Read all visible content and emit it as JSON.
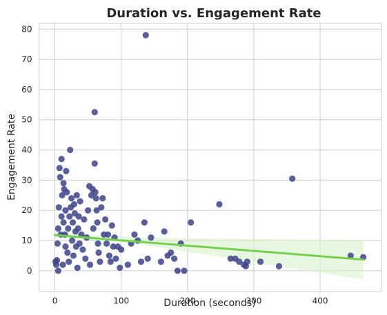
{
  "chart_data": {
    "type": "scatter",
    "title": "Duration vs. Engagement Rate",
    "xlabel": "Duration (seconds)",
    "ylabel": "Engagement Rate",
    "xlim": [
      -24,
      492
    ],
    "ylim": [
      -7,
      82
    ],
    "x_ticks": [
      0,
      100,
      200,
      300,
      400
    ],
    "y_ticks": [
      0,
      10,
      20,
      30,
      40,
      50,
      60,
      70,
      80
    ],
    "grid": true,
    "colors": {
      "points": "#3c4388",
      "regression_line": "#77cf4f",
      "confidence_band": "#d9f2cc"
    },
    "series": [
      {
        "points": [
          [
            1,
            3
          ],
          [
            2,
            2
          ],
          [
            3,
            3.5
          ],
          [
            4,
            9
          ],
          [
            5,
            0
          ],
          [
            5,
            14
          ],
          [
            6,
            21
          ],
          [
            7,
            34
          ],
          [
            8,
            31
          ],
          [
            9,
            12
          ],
          [
            10,
            37
          ],
          [
            10,
            18
          ],
          [
            11,
            25
          ],
          [
            12,
            2
          ],
          [
            13,
            29
          ],
          [
            13,
            16
          ],
          [
            14,
            27
          ],
          [
            15,
            12
          ],
          [
            16,
            8
          ],
          [
            16,
            20
          ],
          [
            17,
            33
          ],
          [
            18,
            26
          ],
          [
            19,
            6
          ],
          [
            20,
            14
          ],
          [
            21,
            3
          ],
          [
            22,
            18
          ],
          [
            23,
            40
          ],
          [
            24,
            21
          ],
          [
            25,
            24
          ],
          [
            26,
            10
          ],
          [
            27,
            16
          ],
          [
            28,
            5
          ],
          [
            29,
            22
          ],
          [
            30,
            19
          ],
          [
            31,
            13
          ],
          [
            32,
            8
          ],
          [
            33,
            25
          ],
          [
            34,
            1
          ],
          [
            35,
            14
          ],
          [
            36,
            18
          ],
          [
            37,
            9
          ],
          [
            38,
            23
          ],
          [
            40,
            12
          ],
          [
            42,
            7
          ],
          [
            44,
            17
          ],
          [
            46,
            4
          ],
          [
            48,
            11
          ],
          [
            50,
            20
          ],
          [
            52,
            28
          ],
          [
            53,
            2
          ],
          [
            55,
            25
          ],
          [
            57,
            27
          ],
          [
            58,
            14
          ],
          [
            60,
            52.5
          ],
          [
            60,
            35.5
          ],
          [
            61,
            26
          ],
          [
            62,
            24
          ],
          [
            63,
            20
          ],
          [
            64,
            16
          ],
          [
            65,
            9
          ],
          [
            66,
            6
          ],
          [
            68,
            3
          ],
          [
            70,
            21
          ],
          [
            72,
            24
          ],
          [
            74,
            12
          ],
          [
            76,
            17
          ],
          [
            78,
            9
          ],
          [
            80,
            12
          ],
          [
            82,
            5
          ],
          [
            84,
            3
          ],
          [
            86,
            15
          ],
          [
            88,
            8
          ],
          [
            90,
            11
          ],
          [
            92,
            4
          ],
          [
            95,
            8
          ],
          [
            98,
            1
          ],
          [
            100,
            7
          ],
          [
            110,
            2
          ],
          [
            115,
            9
          ],
          [
            120,
            12
          ],
          [
            125,
            10
          ],
          [
            130,
            3
          ],
          [
            135,
            16
          ],
          [
            137,
            78
          ],
          [
            140,
            4
          ],
          [
            145,
            11
          ],
          [
            160,
            3
          ],
          [
            165,
            13
          ],
          [
            170,
            5
          ],
          [
            175,
            6
          ],
          [
            180,
            4
          ],
          [
            185,
            0
          ],
          [
            190,
            9
          ],
          [
            195,
            0
          ],
          [
            205,
            16
          ],
          [
            248,
            22
          ],
          [
            265,
            4
          ],
          [
            272,
            4
          ],
          [
            278,
            3
          ],
          [
            285,
            2
          ],
          [
            288,
            1.5
          ],
          [
            290,
            3
          ],
          [
            310,
            3
          ],
          [
            338,
            1.5
          ],
          [
            358,
            30.5
          ],
          [
            446,
            5
          ],
          [
            465,
            4.5
          ]
        ]
      }
    ],
    "regression": {
      "x": [
        0,
        465
      ],
      "y": [
        11.8,
        3.7
      ],
      "band": {
        "x": [
          0,
          50,
          100,
          150,
          200,
          250,
          300,
          350,
          400,
          465
        ],
        "lower": [
          10.9,
          10.2,
          9.4,
          8.0,
          6.3,
          4.6,
          2.8,
          1.0,
          -0.7,
          -2.8
        ],
        "upper": [
          12.8,
          11.9,
          11.3,
          11.0,
          10.8,
          10.6,
          10.5,
          10.4,
          10.3,
          10.2
        ]
      }
    }
  }
}
